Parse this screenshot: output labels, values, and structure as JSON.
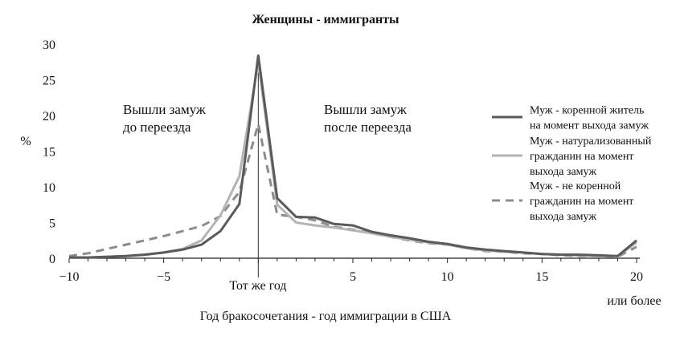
{
  "chart_data": {
    "type": "line",
    "title": "Женщины - иммигранты",
    "xlabel": "Год бракосочетания - год иммиграции в США",
    "ylabel": "%",
    "xlim": [
      -10,
      20
    ],
    "ylim": [
      0,
      30
    ],
    "x_ticks": [
      -10,
      -5,
      5,
      10,
      15,
      20
    ],
    "y_ticks": [
      0,
      5,
      10,
      15,
      20,
      25,
      30
    ],
    "x_tick_labels": [
      "−10",
      "−5",
      "5",
      "10",
      "15",
      "20"
    ],
    "y_tick_labels": [
      "0",
      "5",
      "10",
      "15",
      "20",
      "25",
      "30"
    ],
    "zero_label": "Тот же год",
    "last_label": "или более",
    "annotations": {
      "before_line1": "Вышли замуж",
      "before_line2": "до переезда",
      "after_line1": "Вышли замуж",
      "after_line2": "после переезда"
    },
    "legend_position": "right",
    "series": [
      {
        "name_lines": [
          "Муж - коренной житель",
          "на момент выхода замуж"
        ],
        "color": "#5a5a5a",
        "dash": "none",
        "x": [
          -10,
          -9,
          -8,
          -7,
          -6,
          -5,
          -4,
          -3,
          -2,
          -1,
          0,
          1,
          2,
          3,
          4,
          5,
          6,
          7,
          8,
          9,
          10,
          11,
          12,
          13,
          14,
          15,
          16,
          17,
          18,
          19,
          20
        ],
        "values": [
          0.1,
          0.1,
          0.2,
          0.3,
          0.5,
          0.8,
          1.2,
          1.9,
          3.8,
          7.6,
          28.4,
          8.4,
          5.8,
          5.7,
          4.8,
          4.6,
          3.7,
          3.2,
          2.8,
          2.3,
          2.0,
          1.5,
          1.2,
          1.0,
          0.8,
          0.6,
          0.5,
          0.5,
          0.4,
          0.3,
          2.5
        ]
      },
      {
        "name_lines": [
          "Муж - натурализованный",
          "гражданин на момент",
          "выхода замуж"
        ],
        "color": "#b4b4b4",
        "dash": "none",
        "x": [
          -10,
          -9,
          -8,
          -7,
          -6,
          -5,
          -4,
          -3,
          -2,
          -1,
          0,
          1,
          2,
          3,
          4,
          5,
          6,
          7,
          8,
          9,
          10,
          11,
          12,
          13,
          14,
          15,
          16,
          17,
          18,
          19,
          20
        ],
        "values": [
          0.1,
          0.1,
          0.2,
          0.3,
          0.5,
          0.8,
          1.3,
          2.5,
          6.0,
          11.5,
          27.5,
          7.5,
          5.0,
          4.6,
          4.3,
          3.9,
          3.5,
          3.0,
          2.6,
          2.2,
          1.9,
          1.4,
          1.1,
          0.9,
          0.8,
          0.6,
          0.5,
          0.4,
          0.3,
          0.3,
          2.2
        ]
      },
      {
        "name_lines": [
          "Муж - не коренной",
          "гражданин на момент",
          "выхода замуж"
        ],
        "color": "#8c8c8c",
        "dash": "10,7",
        "x": [
          -10,
          -9,
          -8,
          -7,
          -6,
          -5,
          -4,
          -3,
          -2,
          -1,
          0,
          1,
          2,
          3,
          4,
          5,
          6,
          7,
          8,
          9,
          10,
          11,
          12,
          13,
          14,
          15,
          16,
          17,
          18,
          19,
          20
        ],
        "values": [
          0.3,
          0.7,
          1.3,
          1.9,
          2.5,
          3.1,
          3.8,
          4.5,
          5.9,
          9.3,
          18.8,
          6.1,
          5.8,
          5.3,
          4.4,
          4.0,
          3.5,
          3.0,
          2.5,
          2.1,
          1.9,
          1.4,
          1.0,
          0.9,
          0.7,
          0.6,
          0.4,
          0.3,
          0.3,
          0.2,
          1.6
        ]
      }
    ]
  }
}
